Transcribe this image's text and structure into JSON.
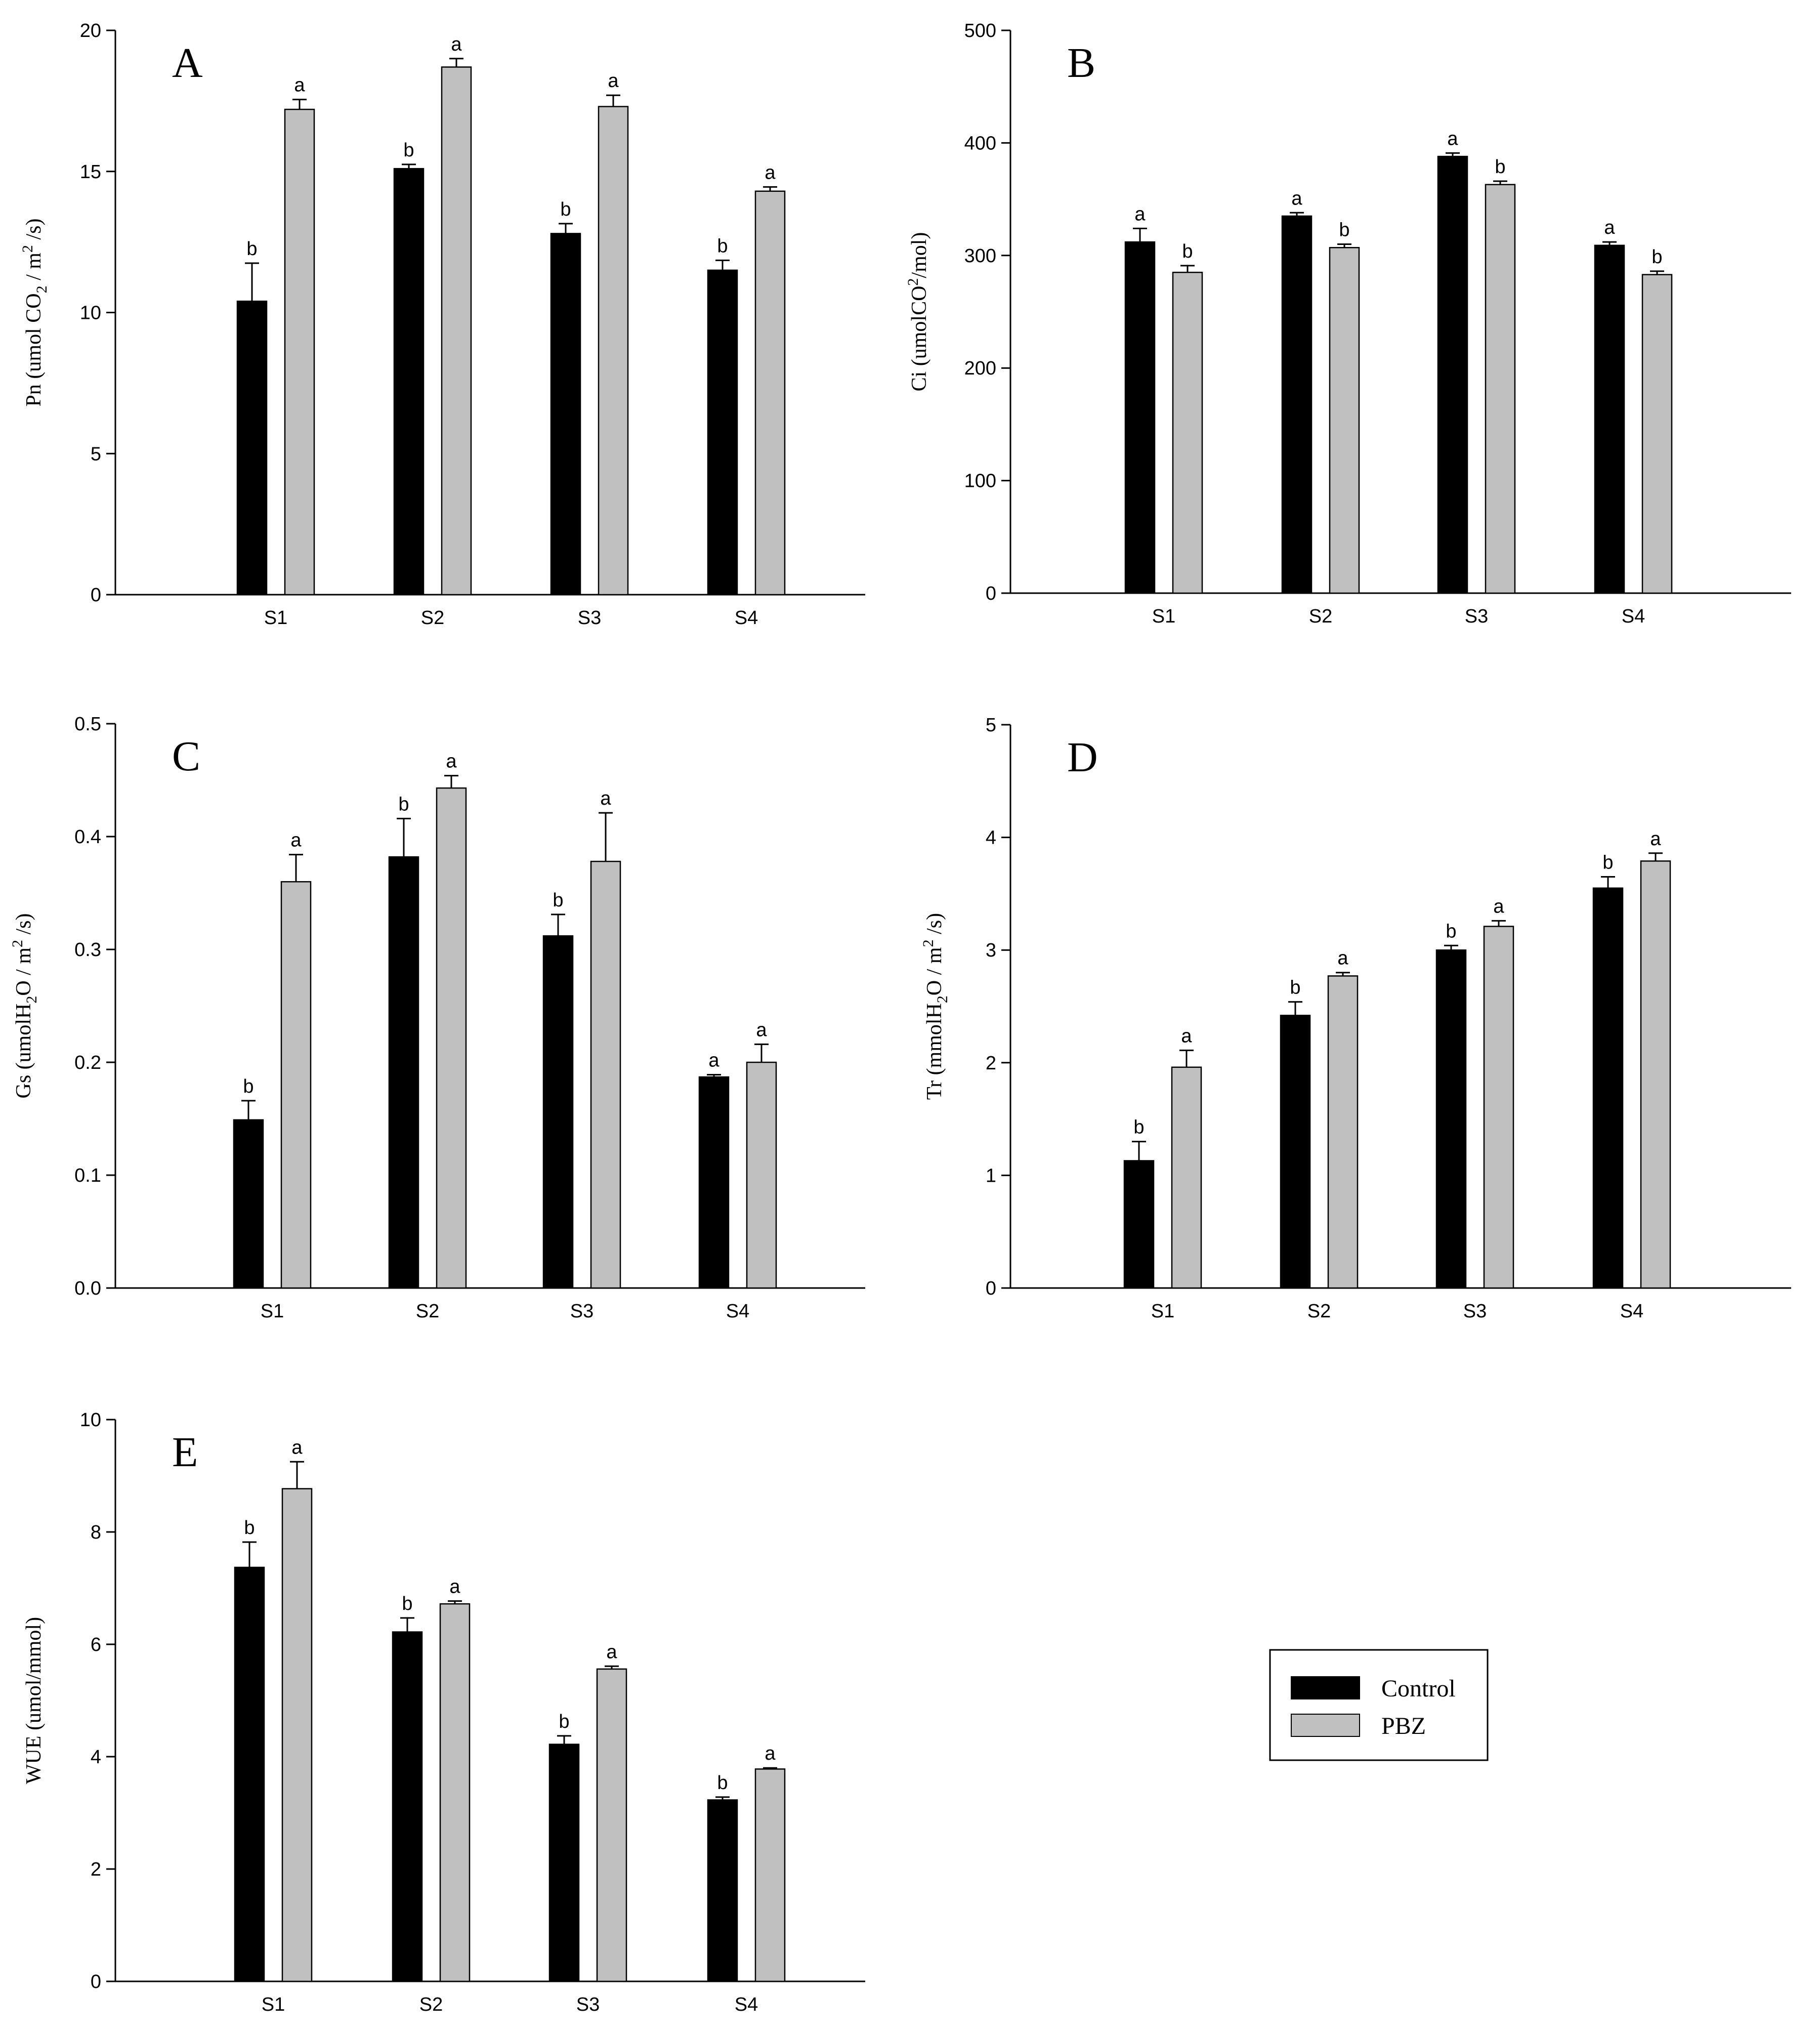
{
  "figure": {
    "legend": [
      {
        "label": "Control",
        "color": "#000000"
      },
      {
        "label": "PBZ",
        "color": "#c0c0c0"
      }
    ]
  },
  "chart_data": [
    {
      "type": "bar",
      "panel": "A",
      "categories": [
        "S1",
        "S2",
        "S3",
        "S4"
      ],
      "ylabel": {
        "main": "Pn (umol CO",
        "sub": "2",
        "mid": " / m",
        "sup": "2",
        "tail": " /s)"
      },
      "ylim": [
        0,
        20
      ],
      "yticks": [
        0,
        5,
        10,
        15,
        20
      ],
      "tick_labels": [
        "0",
        "5",
        "10",
        "15",
        "20"
      ],
      "series": [
        {
          "name": "Control",
          "values": [
            10.4,
            15.1,
            12.8,
            11.5
          ],
          "errors": [
            1.35,
            0.15,
            0.35,
            0.35
          ],
          "sig": [
            "b",
            "b",
            "b",
            "b"
          ]
        },
        {
          "name": "PBZ",
          "values": [
            17.2,
            18.7,
            17.3,
            14.3
          ],
          "errors": [
            0.35,
            0.3,
            0.4,
            0.15
          ],
          "sig": [
            "a",
            "a",
            "a",
            "a"
          ]
        }
      ]
    },
    {
      "type": "bar",
      "panel": "B",
      "categories": [
        "S1",
        "S2",
        "S3",
        "S4"
      ],
      "ylabel": {
        "main": "Ci (umolCO",
        "sup": "2",
        "tail": "/mol)"
      },
      "ylim": [
        0,
        500
      ],
      "yticks": [
        0,
        100,
        200,
        300,
        400,
        500
      ],
      "tick_labels": [
        "0",
        "100",
        "200",
        "300",
        "400",
        "500"
      ],
      "series": [
        {
          "name": "Control",
          "values": [
            312,
            335,
            388,
            309
          ],
          "errors": [
            12,
            3,
            3,
            3
          ],
          "sig": [
            "a",
            "a",
            "a",
            "a"
          ]
        },
        {
          "name": "PBZ",
          "values": [
            285,
            307,
            363,
            283
          ],
          "errors": [
            6,
            3,
            3,
            3
          ],
          "sig": [
            "b",
            "b",
            "b",
            "b"
          ]
        }
      ]
    },
    {
      "type": "bar",
      "panel": "C",
      "categories": [
        "S1",
        "S2",
        "S3",
        "S4"
      ],
      "ylabel": {
        "main": "Gs (umolH",
        "sub": "2",
        "mid": "O / m",
        "sup": "2",
        "tail": " /s)"
      },
      "ylim": [
        0,
        0.5
      ],
      "yticks": [
        0,
        0.1,
        0.2,
        0.3,
        0.4,
        0.5
      ],
      "tick_labels": [
        "0.0",
        "0.1",
        "0.2",
        "0.3",
        "0.4",
        "0.5"
      ],
      "series": [
        {
          "name": "Control",
          "values": [
            0.149,
            0.382,
            0.312,
            0.187
          ],
          "errors": [
            0.017,
            0.034,
            0.019,
            0.002
          ],
          "sig": [
            "b",
            "b",
            "b",
            "a"
          ]
        },
        {
          "name": "PBZ",
          "values": [
            0.36,
            0.443,
            0.378,
            0.2
          ],
          "errors": [
            0.024,
            0.011,
            0.043,
            0.016
          ],
          "sig": [
            "a",
            "a",
            "a",
            "a"
          ]
        }
      ]
    },
    {
      "type": "bar",
      "panel": "D",
      "categories": [
        "S1",
        "S2",
        "S3",
        "S4"
      ],
      "ylabel": {
        "main": "Tr (mmolH",
        "sub": "2",
        "mid": "O / m",
        "sup": "2",
        "tail": " /s)"
      },
      "ylim": [
        0,
        5
      ],
      "yticks": [
        0,
        1,
        2,
        3,
        4,
        5
      ],
      "tick_labels": [
        "0",
        "1",
        "2",
        "3",
        "4",
        "5"
      ],
      "series": [
        {
          "name": "Control",
          "values": [
            1.13,
            2.42,
            3.0,
            3.55
          ],
          "errors": [
            0.17,
            0.12,
            0.04,
            0.1
          ],
          "sig": [
            "b",
            "b",
            "b",
            "b"
          ]
        },
        {
          "name": "PBZ",
          "values": [
            1.96,
            2.77,
            3.21,
            3.79
          ],
          "errors": [
            0.15,
            0.03,
            0.05,
            0.07
          ],
          "sig": [
            "a",
            "a",
            "a",
            "a"
          ]
        }
      ]
    },
    {
      "type": "bar",
      "panel": "E",
      "categories": [
        "S1",
        "S2",
        "S3",
        "S4"
      ],
      "ylabel": {
        "main": "WUE (umol/mmol)"
      },
      "ylim": [
        0,
        10
      ],
      "yticks": [
        0,
        2,
        4,
        6,
        8,
        10
      ],
      "tick_labels": [
        "0",
        "2",
        "4",
        "6",
        "8",
        "10"
      ],
      "series": [
        {
          "name": "Control",
          "values": [
            7.37,
            6.22,
            4.22,
            3.23
          ],
          "errors": [
            0.45,
            0.25,
            0.15,
            0.05
          ],
          "sig": [
            "b",
            "b",
            "b",
            "b"
          ]
        },
        {
          "name": "PBZ",
          "values": [
            8.77,
            6.72,
            5.56,
            3.78
          ],
          "errors": [
            0.48,
            0.05,
            0.05,
            0.02
          ],
          "sig": [
            "a",
            "a",
            "a",
            "a"
          ]
        }
      ]
    }
  ]
}
